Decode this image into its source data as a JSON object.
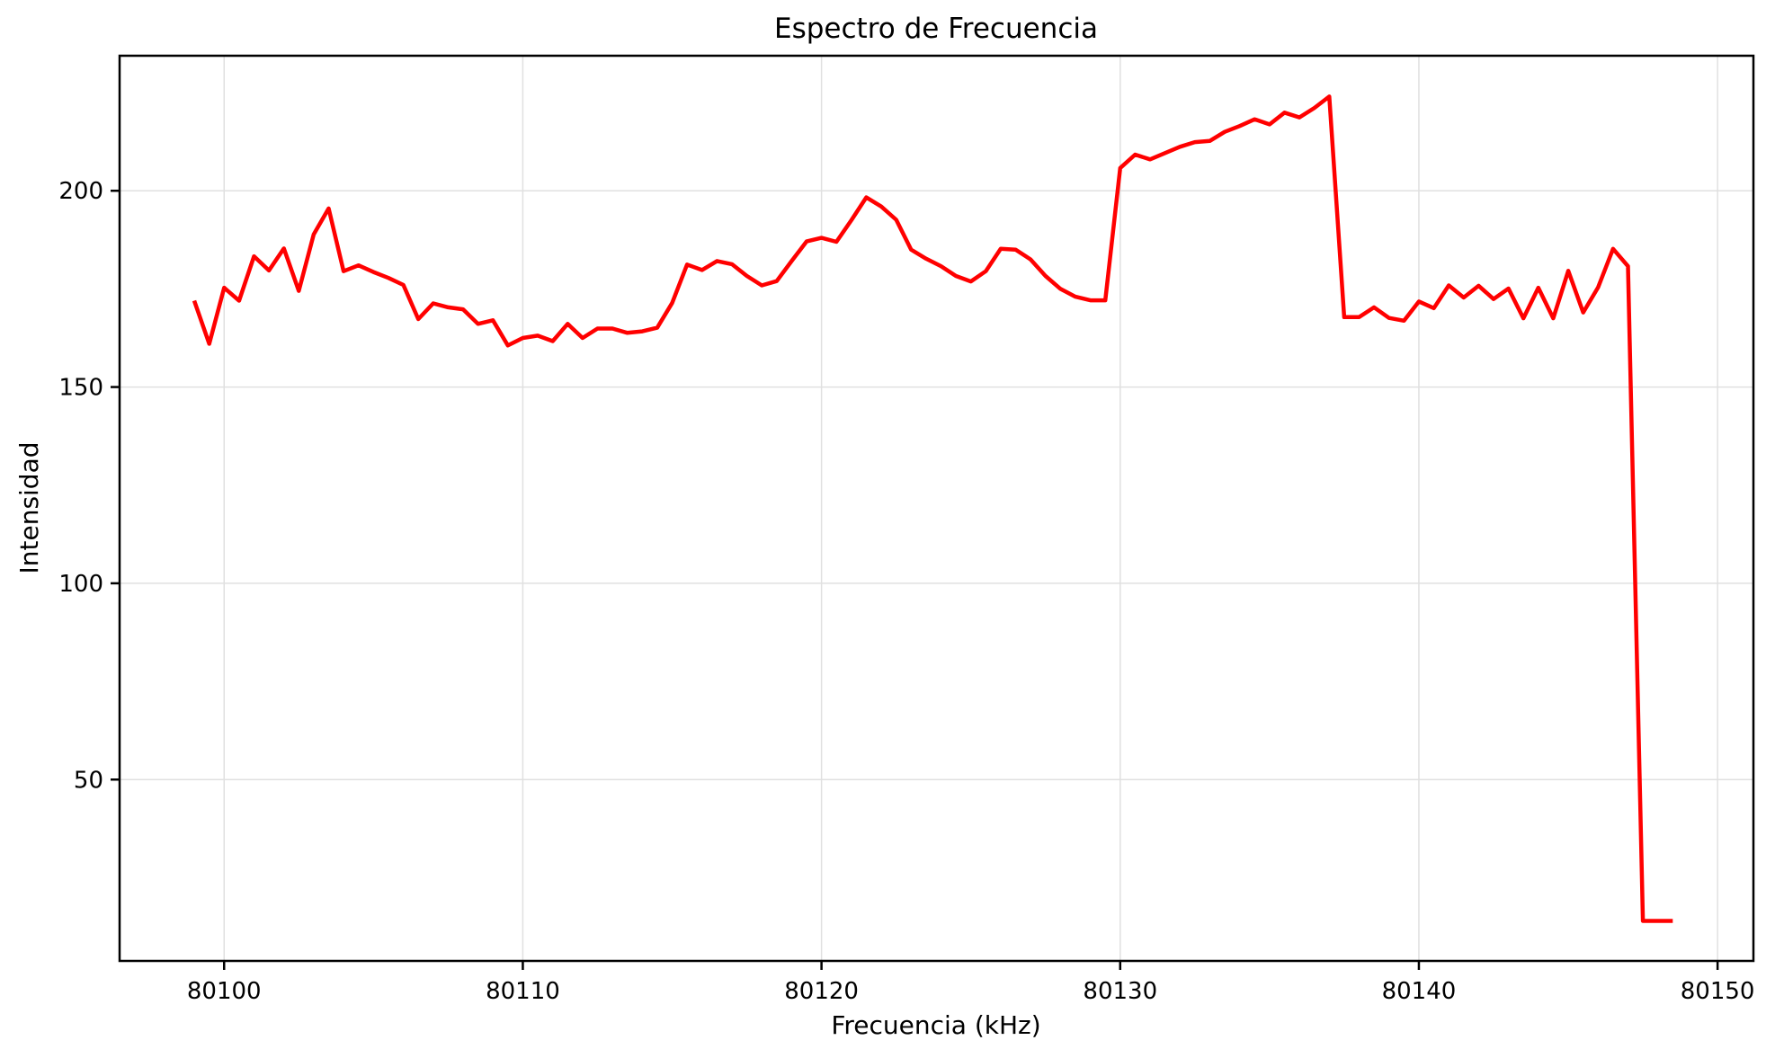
{
  "chart_data": {
    "type": "line",
    "title": "Espectro de Frecuencia",
    "xlabel": "Frecuencia (kHz)",
    "ylabel": "Intensidad",
    "legend": "none",
    "grid": true,
    "grid_color": "#e0e0e0",
    "line_color": "#ff0000",
    "background_color": "#ffffff",
    "xlim": [
      80096.5,
      80151.2
    ],
    "ylim": [
      3.8,
      234.4
    ],
    "x_ticks": [
      80100,
      80110,
      80120,
      80130,
      80140,
      80150
    ],
    "y_ticks": [
      50,
      100,
      150,
      200
    ],
    "x": [
      80099.0,
      80099.5,
      80100.0,
      80100.5,
      80101.0,
      80101.5,
      80102.0,
      80102.5,
      80103.0,
      80103.5,
      80104.0,
      80104.5,
      80105.0,
      80105.5,
      80106.0,
      80106.5,
      80107.0,
      80107.5,
      80108.0,
      80108.5,
      80109.0,
      80109.5,
      80110.0,
      80110.5,
      80111.0,
      80111.5,
      80112.0,
      80112.5,
      80113.0,
      80113.5,
      80114.0,
      80114.5,
      80115.0,
      80115.5,
      80116.0,
      80116.5,
      80117.0,
      80117.5,
      80118.0,
      80118.5,
      80119.0,
      80119.5,
      80120.0,
      80120.5,
      80121.0,
      80121.5,
      80122.0,
      80122.5,
      80123.0,
      80123.5,
      80124.0,
      80124.5,
      80125.0,
      80125.5,
      80126.0,
      80126.5,
      80127.0,
      80127.5,
      80128.0,
      80128.5,
      80129.0,
      80129.5,
      80130.0,
      80130.5,
      80131.0,
      80131.5,
      80132.0,
      80132.5,
      80133.0,
      80133.5,
      80134.0,
      80134.5,
      80135.0,
      80135.5,
      80136.0,
      80136.5,
      80137.0,
      80137.5,
      80138.0,
      80138.5,
      80139.0,
      80139.5,
      80140.0,
      80140.5,
      80141.0,
      80141.5,
      80142.0,
      80142.5,
      80143.0,
      80143.5,
      80144.0,
      80144.5,
      80145.0,
      80145.5,
      80146.0,
      80146.5,
      80147.0,
      80147.5,
      80148.0,
      80148.5
    ],
    "y": [
      172.0,
      161.0,
      175.3,
      172.0,
      183.3,
      179.7,
      185.3,
      174.5,
      188.9,
      195.5,
      179.5,
      181.0,
      179.3,
      177.8,
      176.0,
      167.3,
      171.3,
      170.3,
      169.8,
      166.1,
      167.0,
      160.6,
      162.5,
      163.1,
      161.7,
      166.1,
      162.5,
      164.9,
      164.9,
      163.8,
      164.2,
      165.1,
      171.4,
      181.2,
      179.8,
      182.1,
      181.3,
      178.3,
      175.9,
      177.0,
      182.1,
      187.1,
      188.0,
      187.0,
      192.5,
      198.3,
      196.0,
      192.6,
      185.0,
      182.7,
      180.8,
      178.3,
      176.9,
      179.5,
      185.2,
      185.0,
      182.5,
      178.3,
      175.0,
      173.0,
      172.1,
      172.1,
      205.8,
      209.2,
      208.0,
      209.6,
      211.2,
      212.4,
      212.7,
      215.0,
      216.5,
      218.2,
      216.9,
      219.9,
      218.7,
      221.1,
      224.0,
      167.8,
      167.8,
      170.3,
      167.6,
      166.9,
      171.8,
      170.1,
      175.9,
      172.8,
      175.8,
      172.4,
      175.1,
      167.5,
      175.3,
      167.5,
      179.6,
      169.0,
      175.4,
      185.2,
      180.8,
      14.0,
      14.0,
      14.0
    ]
  }
}
